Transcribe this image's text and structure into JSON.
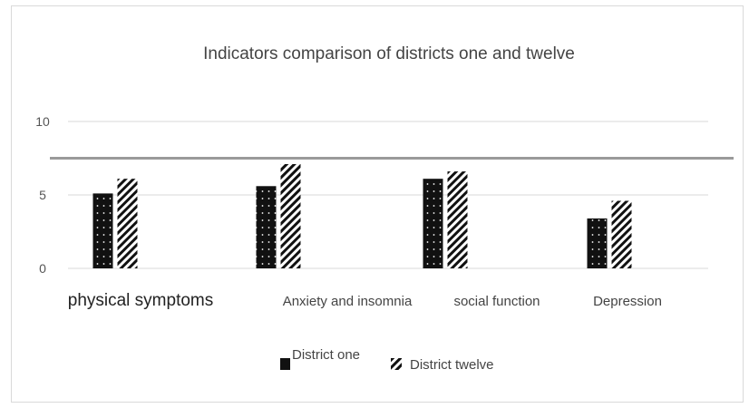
{
  "chart_data": {
    "type": "bar",
    "title": "Indicators comparison of districts one and twelve",
    "categories": [
      "physical symptoms",
      "Anxiety and insomnia",
      "social function",
      "Depression"
    ],
    "series": [
      {
        "name": "District one",
        "values": [
          5.1,
          5.6,
          6.1,
          3.4
        ]
      },
      {
        "name": "District twelve",
        "values": [
          6.1,
          7.1,
          6.6,
          4.6
        ]
      }
    ],
    "reference_line": 7.5,
    "yticks": [
      "0",
      "5",
      "10"
    ],
    "ylim": [
      0,
      10
    ],
    "grid": true,
    "legend_position": "bottom",
    "colors": {
      "district_one": "#111111",
      "district_twelve": "#111111",
      "grid": "#d9d9d9",
      "reference_line": "#9a9a9a"
    }
  }
}
